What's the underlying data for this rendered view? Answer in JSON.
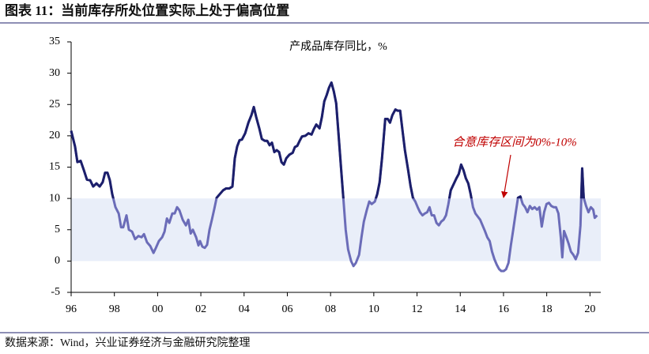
{
  "chart_data": {
    "type": "line",
    "title": "图表 11：当前库存所处位置实际上处于偏高位置",
    "subtitle": "产成品库存同比，%",
    "annotation": "合意库存区间为0%-10%",
    "source": "数据来源：Wind，兴业证券经济与金融研究院整理",
    "x": [
      1996.0,
      1996.18,
      1996.29,
      1996.44,
      1996.59,
      1996.73,
      1996.88,
      1997.02,
      1997.17,
      1997.32,
      1997.46,
      1997.57,
      1997.68,
      1997.79,
      1997.9,
      1998.05,
      1998.2,
      1998.31,
      1998.41,
      1998.56,
      1998.67,
      1998.82,
      1998.96,
      1999.11,
      1999.26,
      1999.37,
      1999.51,
      1999.66,
      1999.81,
      1999.92,
      2000.06,
      2000.21,
      2000.32,
      2000.43,
      2000.54,
      2000.68,
      2000.79,
      2000.9,
      2001.01,
      2001.16,
      2001.31,
      2001.42,
      2001.53,
      2001.63,
      2001.78,
      2001.89,
      2001.96,
      2002.07,
      2002.18,
      2002.29,
      2002.4,
      2002.51,
      2002.62,
      2002.73,
      2002.88,
      2003.03,
      2003.17,
      2003.32,
      2003.46,
      2003.57,
      2003.68,
      2003.79,
      2003.9,
      2004.05,
      2004.2,
      2004.34,
      2004.45,
      2004.56,
      2004.71,
      2004.82,
      2004.96,
      2005.07,
      2005.18,
      2005.29,
      2005.4,
      2005.51,
      2005.62,
      2005.73,
      2005.84,
      2005.95,
      2006.1,
      2006.25,
      2006.35,
      2006.46,
      2006.57,
      2006.68,
      2006.83,
      2006.98,
      2007.12,
      2007.23,
      2007.34,
      2007.49,
      2007.6,
      2007.71,
      2007.82,
      2007.93,
      2008.04,
      2008.15,
      2008.26,
      2008.37,
      2008.48,
      2008.59,
      2008.7,
      2008.81,
      2008.95,
      2009.06,
      2009.17,
      2009.32,
      2009.43,
      2009.54,
      2009.68,
      2009.79,
      2009.9,
      2010.05,
      2010.16,
      2010.27,
      2010.38,
      2010.53,
      2010.64,
      2010.75,
      2010.86,
      2011.0,
      2011.11,
      2011.22,
      2011.33,
      2011.44,
      2011.59,
      2011.7,
      2011.81,
      2011.92,
      2012.03,
      2012.14,
      2012.25,
      2012.36,
      2012.47,
      2012.58,
      2012.68,
      2012.79,
      2012.9,
      2013.01,
      2013.12,
      2013.23,
      2013.34,
      2013.45,
      2013.56,
      2013.71,
      2013.82,
      2013.93,
      2014.04,
      2014.15,
      2014.26,
      2014.37,
      2014.48,
      2014.59,
      2014.7,
      2014.81,
      2014.92,
      2015.03,
      2015.14,
      2015.25,
      2015.36,
      2015.47,
      2015.58,
      2015.69,
      2015.8,
      2015.9,
      2016.01,
      2016.12,
      2016.23,
      2016.34,
      2016.45,
      2016.56,
      2016.67,
      2016.78,
      2016.89,
      2017.0,
      2017.11,
      2017.22,
      2017.33,
      2017.44,
      2017.55,
      2017.66,
      2017.77,
      2017.88,
      2017.99,
      2018.1,
      2018.21,
      2018.32,
      2018.43,
      2018.54,
      2018.65,
      2018.72,
      2018.8,
      2018.91,
      2019.01,
      2019.12,
      2019.23,
      2019.34,
      2019.45,
      2019.56,
      2019.64,
      2019.71,
      2019.82,
      2019.93,
      2020.04,
      2020.15,
      2020.22,
      2020.33
    ],
    "values": [
      20.8,
      18.3,
      15.8,
      16.0,
      14.5,
      13.0,
      12.9,
      11.9,
      12.4,
      11.9,
      12.6,
      14.1,
      14.1,
      12.9,
      10.7,
      8.6,
      7.6,
      5.4,
      5.4,
      7.3,
      5.0,
      4.7,
      3.5,
      4.0,
      3.8,
      4.3,
      3.0,
      2.4,
      1.3,
      2.1,
      3.2,
      3.8,
      4.7,
      6.8,
      6.1,
      7.6,
      7.6,
      8.6,
      8.1,
      6.6,
      5.7,
      6.6,
      4.4,
      5.0,
      3.8,
      2.5,
      3.2,
      2.3,
      2.1,
      2.6,
      5.0,
      6.6,
      8.3,
      10.1,
      10.7,
      11.3,
      11.6,
      11.6,
      11.9,
      16.4,
      18.3,
      19.3,
      19.4,
      20.4,
      22.1,
      23.3,
      24.6,
      23.0,
      21.1,
      19.5,
      19.2,
      19.2,
      18.5,
      18.9,
      17.4,
      17.7,
      17.4,
      15.8,
      15.4,
      16.4,
      17.0,
      17.3,
      18.2,
      18.4,
      19.2,
      19.9,
      20.0,
      20.4,
      20.2,
      21.1,
      21.8,
      21.2,
      23.0,
      25.5,
      26.5,
      27.7,
      28.5,
      27.1,
      25.2,
      20.2,
      15.1,
      10.1,
      5.0,
      1.9,
      0.0,
      -0.8,
      -0.3,
      1.0,
      3.8,
      6.3,
      8.2,
      9.5,
      9.1,
      9.5,
      10.7,
      12.6,
      16.4,
      22.7,
      22.7,
      22.1,
      23.3,
      24.2,
      24.0,
      24.0,
      20.8,
      17.7,
      14.5,
      12.0,
      10.1,
      9.5,
      8.6,
      7.8,
      7.3,
      7.6,
      7.8,
      8.6,
      7.3,
      7.3,
      6.1,
      5.7,
      6.3,
      6.6,
      7.3,
      9.1,
      11.3,
      12.4,
      13.2,
      13.9,
      15.4,
      14.5,
      13.2,
      12.4,
      10.7,
      8.6,
      7.6,
      7.1,
      6.6,
      5.7,
      4.8,
      3.8,
      3.2,
      1.5,
      0.3,
      -0.6,
      -1.3,
      -1.6,
      -1.6,
      -1.3,
      -0.3,
      2.5,
      5.0,
      7.6,
      10.1,
      10.3,
      9.1,
      8.6,
      7.8,
      8.8,
      8.3,
      8.6,
      8.2,
      8.6,
      5.5,
      7.8,
      9.1,
      9.3,
      8.8,
      8.6,
      8.6,
      7.6,
      3.8,
      0.6,
      4.8,
      3.8,
      2.8,
      1.5,
      1.0,
      0.3,
      1.3,
      5.7,
      14.8,
      10.1,
      8.8,
      7.8,
      8.6,
      8.2,
      6.9,
      7.3
    ],
    "color": "#6b6cb8",
    "highlight_color": "#1c1f6b",
    "band": [
      0,
      10
    ],
    "band_color": "#e9eef9",
    "xlim": [
      1996,
      2020.5
    ],
    "xticks": [
      {
        "value": 1996,
        "label": "96"
      },
      {
        "value": 1998,
        "label": "98"
      },
      {
        "value": 2000,
        "label": "00"
      },
      {
        "value": 2002,
        "label": "02"
      },
      {
        "value": 2004,
        "label": "04"
      },
      {
        "value": 2006,
        "label": "06"
      },
      {
        "value": 2008,
        "label": "08"
      },
      {
        "value": 2010,
        "label": "10"
      },
      {
        "value": 2012,
        "label": "12"
      },
      {
        "value": 2014,
        "label": "14"
      },
      {
        "value": 2016,
        "label": "16"
      },
      {
        "value": 2018,
        "label": "18"
      },
      {
        "value": 2020,
        "label": "20"
      }
    ],
    "ylim": [
      -5,
      35
    ],
    "yticks": [
      -5,
      0,
      5,
      10,
      15,
      20,
      25,
      30,
      35
    ]
  }
}
